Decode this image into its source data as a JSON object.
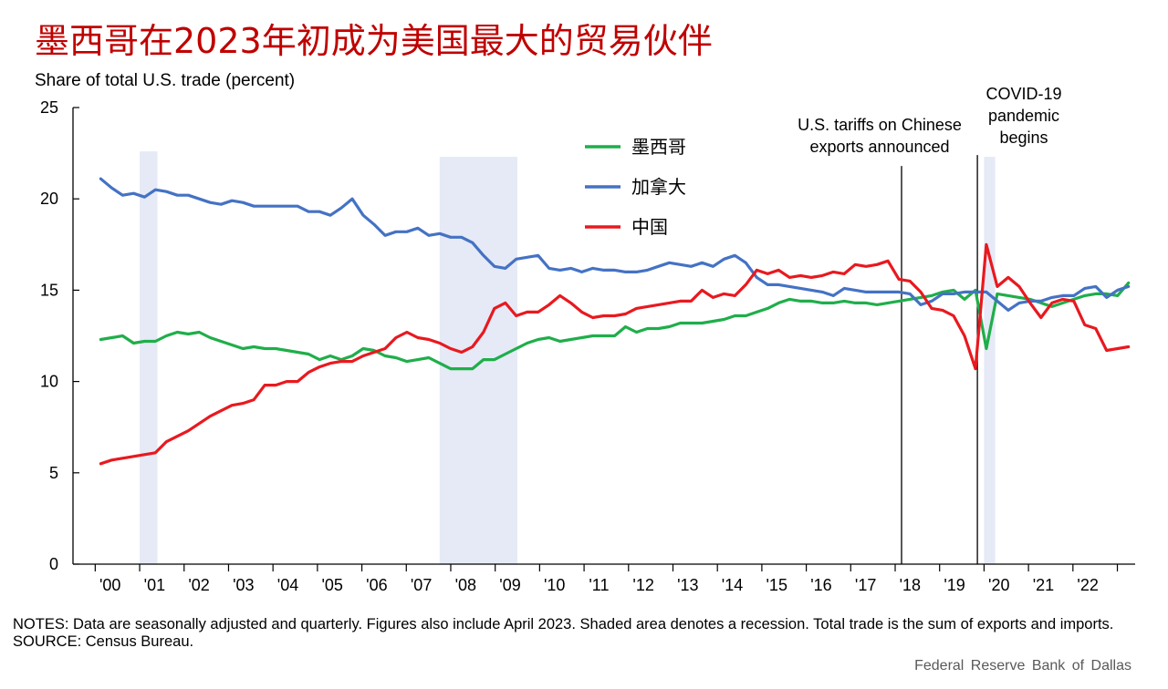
{
  "title": "墨西哥在2023年初成为美国最大的贸易伙伴",
  "notes": "NOTES: Data are seasonally adjusted and quarterly.  Figures also include April 2023. Shaded area denotes a recession. Total trade is the sum of exports and imports.",
  "source": "SOURCE: Census Bureau.",
  "credit": "Federal Reserve Bank of Dallas",
  "colors": {
    "mexico": "#1fae4a",
    "canada": "#4472c4",
    "china": "#e8191f",
    "recession": "#e5eaf6"
  },
  "chart_data": {
    "type": "line",
    "ylabel": "Share of total U.S. trade (percent)",
    "ylim": [
      0,
      25
    ],
    "yticks": [
      0,
      5,
      10,
      15,
      20,
      25
    ],
    "xlim": [
      1999.5,
      2023.4
    ],
    "xtick_labels": [
      "'00",
      "'01",
      "'02",
      "'03",
      "'04",
      "'05",
      "'06",
      "'07",
      "'08",
      "'09",
      "'10",
      "'11",
      "'12",
      "'13",
      "'14",
      "'15",
      "'16",
      "'17",
      "'18",
      "'19",
      "'20",
      "'21",
      "'22"
    ],
    "recessions": [
      [
        2001.0,
        2001.4
      ],
      [
        2007.75,
        2009.5
      ],
      [
        2020.0,
        2020.25
      ]
    ],
    "annotations": [
      {
        "text": [
          "U.S. tariffs on Chinese",
          "exports announced"
        ],
        "x": 2018.0
      },
      {
        "text": [
          "COVID-19",
          "pandemic",
          "begins"
        ],
        "x": 2019.85
      }
    ],
    "legend_position": "top-center",
    "series": [
      {
        "name": "墨西哥",
        "key": "mexico",
        "values": [
          12.3,
          12.4,
          12.5,
          12.1,
          12.2,
          12.2,
          12.5,
          12.7,
          12.6,
          12.7,
          12.4,
          12.2,
          12.0,
          11.8,
          11.9,
          11.8,
          11.8,
          11.7,
          11.6,
          11.5,
          11.2,
          11.4,
          11.2,
          11.4,
          11.8,
          11.7,
          11.4,
          11.3,
          11.1,
          11.2,
          11.3,
          11.0,
          10.7,
          10.7,
          10.7,
          11.2,
          11.2,
          11.5,
          11.8,
          12.1,
          12.3,
          12.4,
          12.2,
          12.3,
          12.4,
          12.5,
          12.5,
          12.5,
          13.0,
          12.7,
          12.9,
          12.9,
          13.0,
          13.2,
          13.2,
          13.2,
          13.3,
          13.4,
          13.6,
          13.6,
          13.8,
          14.0,
          14.3,
          14.5,
          14.4,
          14.4,
          14.3,
          14.3,
          14.4,
          14.3,
          14.3,
          14.2,
          14.3,
          14.4,
          14.5,
          14.6,
          14.7,
          14.9,
          15.0,
          14.5,
          15.0,
          11.8,
          14.8,
          14.7,
          14.6,
          14.5,
          14.3,
          14.1,
          14.3,
          14.5,
          14.7,
          14.8,
          14.8,
          14.7,
          15.4
        ]
      },
      {
        "name": "加拿大",
        "key": "canada",
        "values": [
          21.1,
          20.6,
          20.2,
          20.3,
          20.1,
          20.5,
          20.4,
          20.2,
          20.2,
          20.0,
          19.8,
          19.7,
          19.9,
          19.8,
          19.6,
          19.6,
          19.6,
          19.6,
          19.6,
          19.3,
          19.3,
          19.1,
          19.5,
          20.0,
          19.1,
          18.6,
          18.0,
          18.2,
          18.2,
          18.4,
          18.0,
          18.1,
          17.9,
          17.9,
          17.6,
          16.9,
          16.3,
          16.2,
          16.7,
          16.8,
          16.9,
          16.2,
          16.1,
          16.2,
          16.0,
          16.2,
          16.1,
          16.1,
          16.0,
          16.0,
          16.1,
          16.3,
          16.5,
          16.4,
          16.3,
          16.5,
          16.3,
          16.7,
          16.9,
          16.5,
          15.7,
          15.3,
          15.3,
          15.2,
          15.1,
          15.0,
          14.9,
          14.7,
          15.1,
          15.0,
          14.9,
          14.9,
          14.9,
          14.9,
          14.8,
          14.2,
          14.4,
          14.8,
          14.8,
          14.9,
          14.9,
          14.9,
          14.4,
          13.9,
          14.3,
          14.4,
          14.4,
          14.6,
          14.7,
          14.7,
          15.1,
          15.2,
          14.6,
          15.0,
          15.2
        ]
      },
      {
        "name": "中国",
        "key": "china",
        "values": [
          5.5,
          5.7,
          5.8,
          5.9,
          6.0,
          6.1,
          6.7,
          7.0,
          7.3,
          7.7,
          8.1,
          8.4,
          8.7,
          8.8,
          9.0,
          9.8,
          9.8,
          10.0,
          10.0,
          10.5,
          10.8,
          11.0,
          11.1,
          11.1,
          11.4,
          11.6,
          11.8,
          12.4,
          12.7,
          12.4,
          12.3,
          12.1,
          11.8,
          11.6,
          11.9,
          12.7,
          14.0,
          14.3,
          13.6,
          13.8,
          13.8,
          14.2,
          14.7,
          14.3,
          13.8,
          13.5,
          13.6,
          13.6,
          13.7,
          14.0,
          14.1,
          14.2,
          14.3,
          14.4,
          14.4,
          15.0,
          14.6,
          14.8,
          14.7,
          15.3,
          16.1,
          15.9,
          16.1,
          15.7,
          15.8,
          15.7,
          15.8,
          16.0,
          15.9,
          16.4,
          16.3,
          16.4,
          16.6,
          15.6,
          15.5,
          14.9,
          14.0,
          13.9,
          13.6,
          12.5,
          10.7,
          17.5,
          15.2,
          15.7,
          15.2,
          14.3,
          13.5,
          14.3,
          14.5,
          14.4,
          13.1,
          12.9,
          11.7,
          11.8,
          11.9
        ]
      }
    ]
  }
}
